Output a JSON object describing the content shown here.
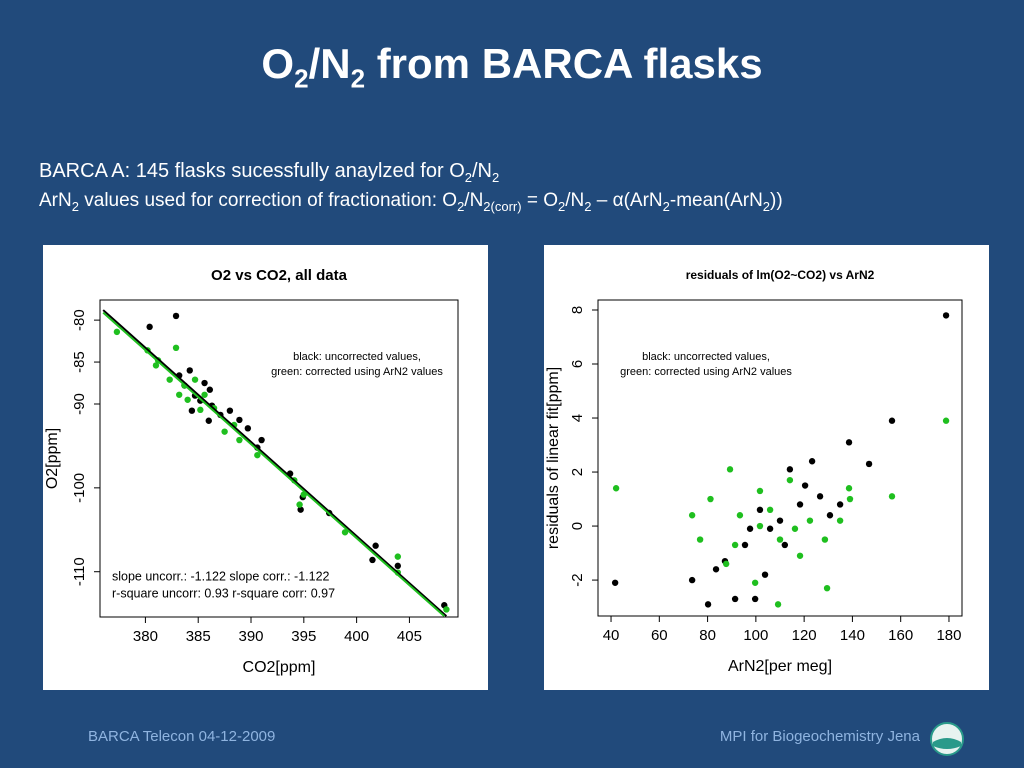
{
  "slide": {
    "title": [
      "O",
      "2",
      "/N",
      "2",
      " from BARCA flasks"
    ],
    "line1": [
      "BARCA A: 145 flasks sucessfully anaylzed for O",
      "2",
      "/N",
      "2"
    ],
    "line2": [
      "ArN",
      "2",
      " values used for correction of fractionation: O",
      "2",
      "/N",
      "2(corr)",
      " = O",
      "2",
      "/N",
      "2",
      " – ",
      "α",
      "(ArN",
      "2",
      "-mean(ArN",
      "2",
      "))"
    ],
    "footer_left": "BARCA Telecon 04-12-2009",
    "footer_right": "MPI for Biogeochemistry Jena"
  },
  "chart_data": [
    {
      "type": "scatter",
      "title": "O2 vs CO2, all data",
      "xlabel": "CO2[ppm]",
      "ylabel": "O2[ppm]",
      "xlim": [
        375.7,
        409.6
      ],
      "ylim": [
        -115.4,
        -77.6
      ],
      "xticks": [
        380,
        385,
        390,
        395,
        400,
        405
      ],
      "yticks": [
        -80,
        -85,
        -90,
        -100,
        -110
      ],
      "annotations": [
        "black: uncorrected values,",
        "green: corrected using ArN2 values",
        "slope uncorr.: -1.122   slope corr.: -1.122",
        "r-square uncorr: 0.93   r-square corr: 0.97"
      ],
      "series": [
        {
          "color": "#000000",
          "x": [
            380.4,
            382.9,
            384.2,
            385.6,
            386.3,
            388,
            389.7,
            391,
            393.7,
            394.9,
            394.7,
            397.4,
            401.8,
            401.5,
            403.9,
            408.3,
            384.7,
            385.2,
            383.7,
            386.1,
            387.1,
            383.2,
            384.4,
            386,
            388.9,
            390.6
          ],
          "values": [
            -80.8,
            -79.5,
            -86,
            -87.5,
            -90.2,
            -90.8,
            -92.9,
            -94.3,
            -98.3,
            -101.1,
            -102.6,
            -103,
            -106.9,
            -108.6,
            -109.3,
            -114,
            -89,
            -89.6,
            -87.8,
            -88.3,
            -91.3,
            -86.6,
            -90.8,
            -92,
            -91.9,
            -95.2
          ]
        },
        {
          "color": "#1fbf1f",
          "x": [
            377.3,
            380.2,
            381,
            382.9,
            382.3,
            383.7,
            384.7,
            384,
            385.6,
            386.5,
            387.5,
            388.9,
            390.6,
            394.1,
            395,
            394.6,
            398.9,
            403.9,
            403.9,
            408.5,
            381.2,
            383.2,
            385.2,
            388.4
          ],
          "values": [
            -81.4,
            -83.6,
            -85.4,
            -83.3,
            -87.1,
            -87.8,
            -87.1,
            -89.5,
            -88.9,
            -90.5,
            -93.3,
            -94.3,
            -96.1,
            -99.1,
            -100.8,
            -102,
            -105.3,
            -108.2,
            -110.1,
            -114.5,
            -84.8,
            -88.9,
            -90.7,
            -92.5
          ]
        },
        {
          "type": "line",
          "color": "#000000",
          "x": [
            376,
            408.5
          ],
          "values": [
            -78.8,
            -115.3
          ]
        },
        {
          "type": "line",
          "color": "#1fbf1f",
          "x": [
            376,
            408.3
          ],
          "values": [
            -79.1,
            -115.3
          ]
        }
      ]
    },
    {
      "type": "scatter",
      "title": "residuals of lm(O2~CO2) vs ArN2",
      "xlabel": "ArN2[per meg]",
      "ylabel": "residuals of linear fit[ppm]",
      "xlim": [
        34.6,
        185.4
      ],
      "ylim": [
        -3.33,
        8.37
      ],
      "xticks": [
        40,
        60,
        80,
        100,
        120,
        140,
        160,
        180
      ],
      "yticks": [
        -2,
        0,
        2,
        4,
        6,
        8
      ],
      "annotations": [
        "black: uncorrected values,",
        "green: corrected using ArN2 values"
      ],
      "series": [
        {
          "color": "#000000",
          "x": [
            41.7,
            73.6,
            80.2,
            91.4,
            99.7,
            178.8,
            156.4,
            138.6,
            146.9,
            123.3,
            114.1,
            101.7,
            105.9,
            110,
            95.5,
            87.2,
            118.3,
            126.6,
            130.7,
            134.9,
            83.5,
            97.6,
            112,
            103.8,
            120.4
          ],
          "values": [
            -2.1,
            -2,
            -2.9,
            -2.7,
            -2.7,
            7.8,
            3.9,
            3.1,
            2.3,
            2.4,
            2.1,
            0.6,
            -0.1,
            0.2,
            -0.7,
            -1.3,
            0.8,
            1.1,
            0.4,
            0.8,
            -1.6,
            -0.1,
            -0.7,
            -1.8,
            1.5
          ]
        },
        {
          "color": "#1fbf1f",
          "x": [
            42.1,
            178.8,
            156.4,
            138.6,
            89.3,
            73.6,
            76.9,
            81.2,
            93.4,
            101.7,
            105.9,
            110,
            116.2,
            122.4,
            128.6,
            134.9,
            109.2,
            129.5,
            99.7,
            87.7,
            101.7,
            114.1,
            139,
            91.4,
            118.3
          ],
          "values": [
            1.4,
            3.9,
            1.1,
            1.4,
            2.1,
            0.4,
            -0.5,
            1,
            0.4,
            0,
            0.6,
            -0.5,
            -0.1,
            0.2,
            -0.5,
            0.2,
            -2.9,
            -2.3,
            -2.1,
            -1.4,
            1.3,
            1.7,
            1,
            -0.7,
            -1.1
          ]
        }
      ]
    }
  ]
}
